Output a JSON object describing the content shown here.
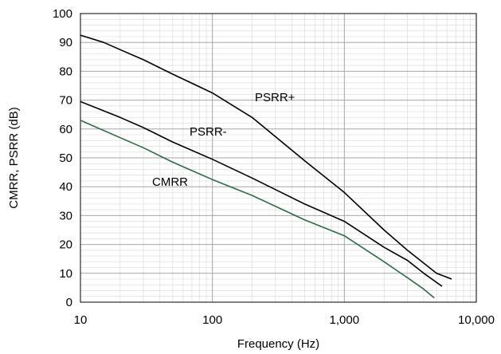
{
  "chart_data": {
    "type": "line",
    "xlabel": "Frequency (Hz)",
    "ylabel": "CMRR, PSRR (dB)",
    "xscale": "log",
    "xlim": [
      10,
      10000
    ],
    "ylim": [
      0,
      100
    ],
    "x_ticks": [
      10,
      100,
      1000,
      10000
    ],
    "x_tick_labels": [
      "10",
      "100",
      "1,000",
      "10,000"
    ],
    "y_ticks": [
      0,
      10,
      20,
      30,
      40,
      50,
      60,
      70,
      80,
      90,
      100
    ],
    "y_tick_labels": [
      "0",
      "10",
      "20",
      "30",
      "40",
      "50",
      "60",
      "70",
      "80",
      "90",
      "100"
    ],
    "grid": true,
    "legend": "none (labels placed inline next to curves)",
    "series": [
      {
        "name": "PSRR+",
        "color": "#000000",
        "x": [
          10,
          15,
          20,
          30,
          50,
          100,
          200,
          500,
          1000,
          2000,
          3000,
          5000,
          6500
        ],
        "y": [
          92.5,
          90,
          87.5,
          84,
          79,
          72.5,
          64,
          49,
          38,
          25,
          18,
          10,
          8
        ]
      },
      {
        "name": "PSRR-",
        "color": "#000000",
        "x": [
          10,
          20,
          30,
          50,
          100,
          200,
          500,
          1000,
          2000,
          3000,
          4000,
          5500
        ],
        "y": [
          69.5,
          64,
          60.5,
          55.5,
          49.5,
          43,
          34,
          28,
          19,
          14.5,
          10,
          5.5
        ]
      },
      {
        "name": "CMRR",
        "color": "#2e6b47",
        "x": [
          10,
          20,
          30,
          50,
          100,
          200,
          500,
          1000,
          2000,
          3000,
          4000,
          4800
        ],
        "y": [
          63,
          57,
          53.5,
          48.5,
          42.5,
          37,
          28.5,
          23,
          14,
          8.5,
          4.5,
          1.5
        ]
      }
    ]
  }
}
